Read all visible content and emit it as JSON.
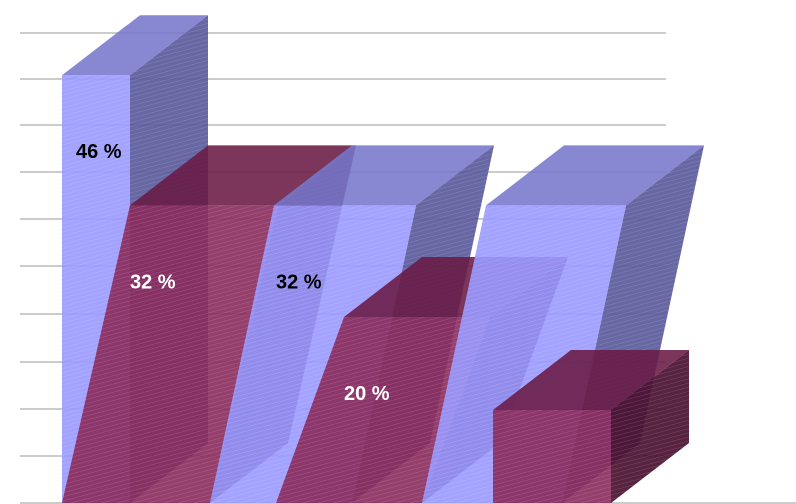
{
  "chart_data": {
    "type": "bar",
    "style": "3d-skewed-columns",
    "grid": "horizontal",
    "colors": {
      "blue_front": "#9999ff",
      "blue_side": "#5a5a9c",
      "blue_top": "#7777cc",
      "maroon_front": "#8a2a5c",
      "maroon_side": "#4a1030",
      "maroon_top": "#6a1a44"
    },
    "bars": [
      {
        "value": 46,
        "label": "46 %",
        "color": "blue",
        "label_color": "#000000"
      },
      {
        "value": 32,
        "label": "32 %",
        "color": "maroon",
        "label_color": "#ffffff"
      },
      {
        "value": 32,
        "label": "32 %",
        "color": "blue",
        "label_color": "#000000"
      },
      {
        "value": 20,
        "label": "20 %",
        "color": "maroon",
        "label_color": "#ffffff"
      },
      {
        "value": 32,
        "label": "",
        "color": "blue",
        "label_color": "#000000"
      },
      {
        "value": 10,
        "label": "",
        "color": "maroon",
        "label_color": "#ffffff"
      }
    ]
  }
}
